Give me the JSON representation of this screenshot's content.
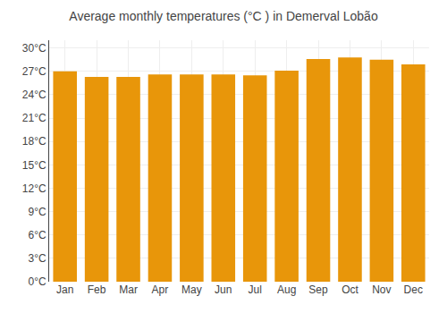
{
  "chart_data": {
    "type": "bar",
    "title": "Average monthly temperatures (°C ) in Demerval Lobão",
    "categories": [
      "Jan",
      "Feb",
      "Mar",
      "Apr",
      "May",
      "Jun",
      "Jul",
      "Aug",
      "Sep",
      "Oct",
      "Nov",
      "Dec"
    ],
    "values": [
      27.0,
      26.3,
      26.3,
      26.6,
      26.6,
      26.6,
      26.5,
      27.1,
      28.6,
      28.8,
      28.5,
      27.9
    ],
    "color": "#E8960A",
    "ylim": [
      0,
      31
    ],
    "yticks": [
      {
        "value": 0,
        "label": "0°C"
      },
      {
        "value": 3,
        "label": "3°C"
      },
      {
        "value": 6,
        "label": "6°C"
      },
      {
        "value": 9,
        "label": "9°C"
      },
      {
        "value": 12,
        "label": "12°C"
      },
      {
        "value": 15,
        "label": "15°C"
      },
      {
        "value": 18,
        "label": "18°C"
      },
      {
        "value": 21,
        "label": "21°C"
      },
      {
        "value": 24,
        "label": "24°C"
      },
      {
        "value": 27,
        "label": "27°C"
      },
      {
        "value": 30,
        "label": "30°C"
      }
    ],
    "grid": true
  }
}
